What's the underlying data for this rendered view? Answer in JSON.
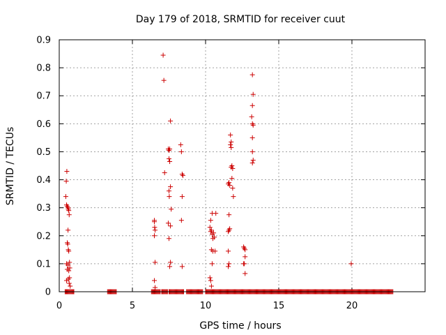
{
  "chart_data": {
    "type": "scatter",
    "title": "Day 179 of 2018, SRMTID for receiver cuut",
    "xlabel": "GPS time / hours",
    "ylabel": "SRMTID / TECUs",
    "xlim": [
      0,
      25
    ],
    "ylim": [
      0,
      0.9
    ],
    "grid": true,
    "marker": "plus",
    "x_ticks": [
      0,
      5,
      10,
      15,
      20
    ],
    "y_ticks": [
      0,
      0.1,
      0.2,
      0.3,
      0.4,
      0.5,
      0.6,
      0.7,
      0.8,
      0.9
    ],
    "x_tick_labels": [
      "0",
      "5",
      "10",
      "15",
      "20"
    ],
    "y_tick_labels": [
      "0",
      "0.1",
      "0.2",
      "0.3",
      "0.4",
      "0.5",
      "0.6",
      "0.7",
      "0.8",
      "0.9"
    ],
    "series": [
      {
        "name": "SRMTID",
        "color": "#cc0000",
        "points": [
          [
            0.45,
            0.34
          ],
          [
            0.48,
            0.395
          ],
          [
            0.52,
            0.43
          ],
          [
            0.5,
            0.31
          ],
          [
            0.55,
            0.305
          ],
          [
            0.6,
            0.3
          ],
          [
            0.62,
            0.295
          ],
          [
            0.65,
            0.29
          ],
          [
            0.68,
            0.275
          ],
          [
            0.6,
            0.22
          ],
          [
            0.55,
            0.175
          ],
          [
            0.58,
            0.17
          ],
          [
            0.62,
            0.15
          ],
          [
            0.65,
            0.145
          ],
          [
            0.5,
            0.1
          ],
          [
            0.6,
            0.095
          ],
          [
            0.7,
            0.105
          ],
          [
            0.72,
            0.085
          ],
          [
            0.55,
            0.08
          ],
          [
            0.65,
            0.075
          ],
          [
            0.7,
            0.05
          ],
          [
            0.62,
            0.045
          ],
          [
            0.75,
            0.02
          ],
          [
            0.5,
            0.04
          ],
          [
            0.68,
            0.03
          ],
          [
            6.5,
            0.255
          ],
          [
            6.5,
            0.25
          ],
          [
            6.52,
            0.23
          ],
          [
            6.55,
            0.22
          ],
          [
            6.5,
            0.2
          ],
          [
            6.55,
            0.105
          ],
          [
            6.5,
            0.04
          ],
          [
            6.55,
            0.015
          ],
          [
            7.1,
            0.845
          ],
          [
            7.15,
            0.755
          ],
          [
            7.2,
            0.425
          ],
          [
            7.45,
            0.51
          ],
          [
            7.5,
            0.505
          ],
          [
            7.55,
            0.51
          ],
          [
            7.5,
            0.475
          ],
          [
            7.55,
            0.465
          ],
          [
            7.6,
            0.61
          ],
          [
            7.5,
            0.36
          ],
          [
            7.6,
            0.375
          ],
          [
            7.52,
            0.34
          ],
          [
            7.65,
            0.295
          ],
          [
            7.45,
            0.245
          ],
          [
            7.6,
            0.235
          ],
          [
            7.5,
            0.19
          ],
          [
            7.55,
            0.09
          ],
          [
            7.6,
            0.105
          ],
          [
            8.3,
            0.525
          ],
          [
            8.35,
            0.5
          ],
          [
            8.4,
            0.42
          ],
          [
            8.45,
            0.415
          ],
          [
            8.4,
            0.34
          ],
          [
            8.35,
            0.255
          ],
          [
            8.4,
            0.09
          ],
          [
            10.35,
            0.255
          ],
          [
            10.3,
            0.23
          ],
          [
            10.4,
            0.22
          ],
          [
            10.35,
            0.215
          ],
          [
            10.45,
            0.205
          ],
          [
            10.5,
            0.19
          ],
          [
            10.55,
            0.21
          ],
          [
            10.45,
            0.28
          ],
          [
            10.7,
            0.28
          ],
          [
            10.6,
            0.195
          ],
          [
            10.4,
            0.15
          ],
          [
            10.5,
            0.145
          ],
          [
            10.65,
            0.145
          ],
          [
            10.45,
            0.1
          ],
          [
            10.3,
            0.05
          ],
          [
            10.35,
            0.04
          ],
          [
            10.4,
            0.02
          ],
          [
            11.55,
            0.385
          ],
          [
            11.6,
            0.39
          ],
          [
            11.65,
            0.38
          ],
          [
            11.7,
            0.56
          ],
          [
            11.75,
            0.535
          ],
          [
            11.7,
            0.525
          ],
          [
            11.75,
            0.515
          ],
          [
            11.8,
            0.45
          ],
          [
            11.85,
            0.44
          ],
          [
            11.75,
            0.445
          ],
          [
            11.8,
            0.405
          ],
          [
            11.85,
            0.37
          ],
          [
            11.9,
            0.34
          ],
          [
            11.6,
            0.275
          ],
          [
            11.55,
            0.215
          ],
          [
            11.6,
            0.22
          ],
          [
            11.65,
            0.225
          ],
          [
            11.55,
            0.145
          ],
          [
            11.6,
            0.1
          ],
          [
            11.55,
            0.09
          ],
          [
            12.6,
            0.16
          ],
          [
            12.65,
            0.155
          ],
          [
            12.7,
            0.15
          ],
          [
            12.7,
            0.125
          ],
          [
            12.6,
            0.1
          ],
          [
            12.65,
            0.1
          ],
          [
            12.7,
            0.065
          ],
          [
            13.2,
            0.775
          ],
          [
            13.25,
            0.705
          ],
          [
            13.2,
            0.665
          ],
          [
            13.15,
            0.625
          ],
          [
            13.2,
            0.6
          ],
          [
            13.25,
            0.595
          ],
          [
            13.2,
            0.55
          ],
          [
            13.2,
            0.5
          ],
          [
            13.25,
            0.47
          ],
          [
            13.2,
            0.46
          ],
          [
            19.95,
            0.1
          ]
        ],
        "zero_runs": [
          [
            0.4,
            1.0
          ],
          [
            3.3,
            3.9
          ],
          [
            6.3,
            6.9
          ],
          [
            7.0,
            7.4
          ],
          [
            7.5,
            8.5
          ],
          [
            8.7,
            9.8
          ],
          [
            10.0,
            22.8
          ]
        ]
      }
    ]
  }
}
